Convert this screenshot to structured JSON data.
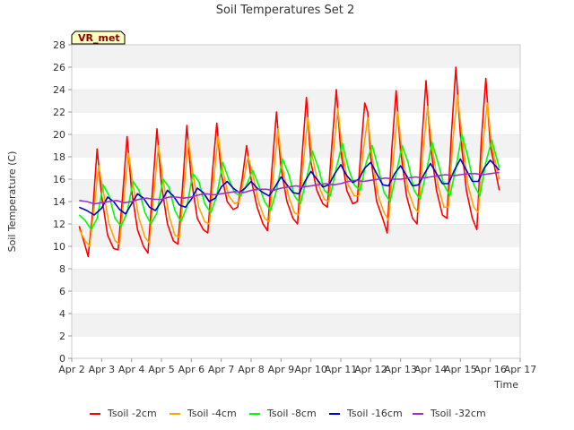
{
  "chart_data": {
    "type": "line",
    "title": "Soil Temperatures Set 2",
    "xlabel": "Time",
    "ylabel": "Soil Temperature (C)",
    "badge": "VR_met",
    "xlim": [
      2.0,
      17.0
    ],
    "ylim": [
      0,
      28
    ],
    "yticks": [
      "0",
      "2",
      "4",
      "6",
      "8",
      "10",
      "12",
      "14",
      "16",
      "18",
      "20",
      "22",
      "24",
      "26",
      "28"
    ],
    "xticks": [
      "Apr 2",
      "Apr 3",
      "Apr 4",
      "Apr 5",
      "Apr 6",
      "Apr 7",
      "Apr 8",
      "Apr 9",
      "Apr 10",
      "Apr 11",
      "Apr 12",
      "Apr 13",
      "Apr 14",
      "Apr 15",
      "Apr 16",
      "Apr 17"
    ],
    "grid": "horizontal bands",
    "legend_position": "bottom",
    "x_unit": "day of April",
    "series": [
      {
        "name": "Tsoil -2cm",
        "color": "#ff0000",
        "x": [
          2.25,
          2.4,
          2.55,
          2.7,
          2.85,
          3.0,
          3.2,
          3.4,
          3.55,
          3.7,
          3.85,
          4.0,
          4.2,
          4.4,
          4.55,
          4.7,
          4.85,
          5.0,
          5.2,
          5.4,
          5.55,
          5.7,
          5.85,
          6.0,
          6.2,
          6.4,
          6.55,
          6.7,
          6.85,
          7.0,
          7.2,
          7.4,
          7.55,
          7.7,
          7.85,
          8.0,
          8.2,
          8.4,
          8.55,
          8.7,
          8.85,
          9.0,
          9.2,
          9.4,
          9.55,
          9.7,
          9.85,
          10.0,
          10.2,
          10.4,
          10.55,
          10.7,
          10.85,
          11.0,
          11.2,
          11.4,
          11.55,
          11.7,
          11.8,
          11.9,
          12.0,
          12.2,
          12.4,
          12.55,
          12.7,
          12.85,
          13.0,
          13.2,
          13.4,
          13.55,
          13.7,
          13.85,
          14.0,
          14.2,
          14.4,
          14.55,
          14.7,
          14.85,
          15.0,
          15.2,
          15.4,
          15.55,
          15.7,
          15.85,
          16.0,
          16.15,
          16.3
        ],
        "y": [
          11.8,
          10.5,
          9.1,
          13.0,
          18.7,
          14.5,
          11.0,
          9.8,
          9.7,
          14.5,
          19.8,
          15.0,
          11.5,
          10.0,
          9.4,
          15.0,
          20.5,
          15.5,
          12.0,
          10.5,
          10.2,
          15.0,
          20.8,
          16.0,
          12.5,
          11.5,
          11.2,
          16.5,
          21.0,
          16.5,
          14.0,
          13.3,
          13.5,
          16.0,
          19.0,
          16.0,
          13.5,
          12.0,
          11.4,
          17.0,
          22.0,
          17.0,
          14.0,
          12.5,
          12.0,
          18.0,
          23.3,
          17.5,
          15.0,
          13.8,
          13.5,
          19.0,
          24.0,
          18.5,
          15.0,
          13.8,
          14.0,
          19.5,
          22.8,
          22.0,
          18.0,
          14.0,
          12.5,
          11.2,
          18.5,
          23.9,
          18.5,
          14.5,
          12.5,
          12.0,
          19.0,
          24.8,
          19.0,
          15.0,
          12.8,
          12.5,
          20.0,
          26.0,
          20.0,
          15.0,
          12.5,
          11.5,
          19.5,
          25.0,
          19.0,
          17.0,
          15.0
        ]
      },
      {
        "name": "Tsoil -4cm",
        "color": "#ffa500",
        "x": [
          2.25,
          2.45,
          2.6,
          2.75,
          2.9,
          3.05,
          3.25,
          3.45,
          3.6,
          3.75,
          3.9,
          4.05,
          4.25,
          4.45,
          4.6,
          4.75,
          4.9,
          5.05,
          5.25,
          5.45,
          5.6,
          5.75,
          5.9,
          6.05,
          6.25,
          6.45,
          6.6,
          6.75,
          6.9,
          7.05,
          7.25,
          7.45,
          7.6,
          7.75,
          7.9,
          8.05,
          8.25,
          8.45,
          8.6,
          8.75,
          8.9,
          9.05,
          9.25,
          9.45,
          9.6,
          9.75,
          9.9,
          10.05,
          10.25,
          10.45,
          10.6,
          10.75,
          10.9,
          11.05,
          11.25,
          11.45,
          11.6,
          11.75,
          11.9,
          12.05,
          12.25,
          12.45,
          12.6,
          12.75,
          12.9,
          13.05,
          13.25,
          13.45,
          13.6,
          13.75,
          13.9,
          14.05,
          14.25,
          14.45,
          14.6,
          14.75,
          14.9,
          15.05,
          15.25,
          15.45,
          15.6,
          15.75,
          15.9,
          16.05,
          16.3
        ],
        "y": [
          11.5,
          10.5,
          10.0,
          13.5,
          17.2,
          15.0,
          12.0,
          10.5,
          10.2,
          14.5,
          18.3,
          15.5,
          12.5,
          10.8,
          10.3,
          14.8,
          19.0,
          16.0,
          12.8,
          11.0,
          10.8,
          15.0,
          19.5,
          16.5,
          13.5,
          12.2,
          12.0,
          16.0,
          19.8,
          16.8,
          14.5,
          13.8,
          14.0,
          16.0,
          18.0,
          16.5,
          14.0,
          12.5,
          12.2,
          16.5,
          20.5,
          17.0,
          14.5,
          13.0,
          12.8,
          17.5,
          21.5,
          18.0,
          15.5,
          14.2,
          14.0,
          18.5,
          22.3,
          18.5,
          15.5,
          14.5,
          14.5,
          18.5,
          21.5,
          18.0,
          14.5,
          13.0,
          12.3,
          17.5,
          22.0,
          18.5,
          15.0,
          13.5,
          13.0,
          18.5,
          22.5,
          19.0,
          15.5,
          13.5,
          13.5,
          19.5,
          23.5,
          20.0,
          15.5,
          13.5,
          13.0,
          19.0,
          22.8,
          19.0,
          16.0
        ]
      },
      {
        "name": "Tsoil -8cm",
        "color": "#00ff00",
        "x": [
          2.25,
          2.45,
          2.65,
          2.85,
          3.05,
          3.25,
          3.45,
          3.65,
          3.85,
          4.05,
          4.25,
          4.45,
          4.65,
          4.85,
          5.05,
          5.25,
          5.45,
          5.65,
          5.85,
          6.05,
          6.25,
          6.45,
          6.65,
          6.85,
          7.05,
          7.25,
          7.45,
          7.65,
          7.85,
          8.05,
          8.25,
          8.45,
          8.65,
          8.85,
          9.05,
          9.25,
          9.45,
          9.65,
          9.85,
          10.05,
          10.25,
          10.45,
          10.65,
          10.85,
          11.05,
          11.25,
          11.45,
          11.65,
          11.85,
          12.05,
          12.25,
          12.45,
          12.65,
          12.85,
          13.05,
          13.25,
          13.45,
          13.65,
          13.85,
          14.05,
          14.25,
          14.45,
          14.65,
          14.85,
          15.05,
          15.25,
          15.45,
          15.65,
          15.85,
          16.05,
          16.3
        ],
        "y": [
          12.8,
          12.3,
          11.5,
          12.5,
          15.5,
          14.5,
          12.5,
          11.8,
          13.0,
          15.8,
          15.0,
          13.0,
          12.0,
          13.0,
          16.0,
          15.3,
          13.2,
          12.2,
          13.5,
          16.5,
          15.8,
          13.8,
          13.0,
          14.5,
          17.5,
          16.0,
          14.8,
          14.5,
          15.5,
          16.8,
          15.5,
          14.0,
          13.2,
          15.0,
          17.8,
          16.5,
          14.5,
          13.8,
          16.0,
          18.5,
          17.0,
          15.0,
          14.5,
          17.0,
          19.2,
          17.0,
          15.5,
          15.0,
          17.5,
          19.0,
          17.0,
          14.8,
          14.0,
          16.5,
          19.0,
          17.5,
          15.0,
          14.2,
          16.5,
          19.3,
          17.5,
          15.5,
          14.5,
          17.0,
          20.0,
          18.0,
          15.5,
          14.5,
          17.5,
          19.5,
          17.0
        ]
      },
      {
        "name": "Tsoil -16cm",
        "color": "#0000cc",
        "x": [
          2.25,
          2.5,
          2.75,
          3.0,
          3.2,
          3.4,
          3.6,
          3.8,
          4.0,
          4.2,
          4.4,
          4.6,
          4.8,
          5.0,
          5.2,
          5.4,
          5.6,
          5.8,
          6.0,
          6.2,
          6.4,
          6.6,
          6.8,
          7.0,
          7.2,
          7.4,
          7.6,
          7.8,
          8.0,
          8.2,
          8.4,
          8.6,
          8.8,
          9.0,
          9.2,
          9.4,
          9.6,
          9.8,
          10.0,
          10.2,
          10.4,
          10.6,
          10.8,
          11.0,
          11.2,
          11.4,
          11.6,
          11.8,
          12.0,
          12.2,
          12.4,
          12.6,
          12.8,
          13.0,
          13.2,
          13.4,
          13.6,
          13.8,
          14.0,
          14.2,
          14.4,
          14.6,
          14.8,
          15.0,
          15.2,
          15.4,
          15.6,
          15.8,
          16.0,
          16.3
        ],
        "y": [
          13.5,
          13.2,
          12.8,
          13.4,
          14.4,
          14.0,
          13.3,
          12.9,
          13.8,
          14.7,
          14.3,
          13.5,
          13.2,
          14.0,
          15.0,
          14.5,
          13.7,
          13.5,
          14.2,
          15.2,
          14.8,
          14.0,
          14.3,
          15.3,
          15.8,
          15.2,
          14.8,
          15.2,
          15.8,
          15.2,
          14.8,
          14.5,
          15.3,
          16.2,
          15.5,
          14.8,
          14.7,
          15.8,
          16.7,
          16.0,
          15.3,
          15.5,
          16.5,
          17.3,
          16.3,
          15.7,
          16.0,
          17.0,
          17.5,
          16.5,
          15.5,
          15.4,
          16.5,
          17.2,
          16.3,
          15.4,
          15.5,
          16.5,
          17.4,
          16.5,
          15.6,
          15.6,
          16.8,
          17.8,
          16.8,
          15.8,
          15.8,
          17.0,
          17.7,
          16.8
        ]
      },
      {
        "name": "Tsoil -32cm",
        "color": "#9932cc",
        "x": [
          2.25,
          2.5,
          2.75,
          3.0,
          3.25,
          3.5,
          3.75,
          4.0,
          4.25,
          4.5,
          4.75,
          5.0,
          5.25,
          5.5,
          5.75,
          6.0,
          6.25,
          6.5,
          6.75,
          7.0,
          7.25,
          7.5,
          7.75,
          8.0,
          8.25,
          8.5,
          8.75,
          9.0,
          9.25,
          9.5,
          9.75,
          10.0,
          10.25,
          10.5,
          10.75,
          11.0,
          11.25,
          11.5,
          11.75,
          12.0,
          12.25,
          12.5,
          12.75,
          13.0,
          13.25,
          13.5,
          13.75,
          14.0,
          14.25,
          14.5,
          14.75,
          15.0,
          15.25,
          15.5,
          15.75,
          16.0,
          16.3
        ],
        "y": [
          14.1,
          14.0,
          13.8,
          13.9,
          14.0,
          14.1,
          13.9,
          14.0,
          14.2,
          14.3,
          14.2,
          14.2,
          14.4,
          14.4,
          14.3,
          14.4,
          14.6,
          14.7,
          14.6,
          14.7,
          14.8,
          14.9,
          14.8,
          15.0,
          15.1,
          15.1,
          15.0,
          15.2,
          15.3,
          15.4,
          15.3,
          15.4,
          15.5,
          15.6,
          15.5,
          15.6,
          15.8,
          15.9,
          15.8,
          15.9,
          16.0,
          16.1,
          16.0,
          16.0,
          16.1,
          16.2,
          16.1,
          16.2,
          16.3,
          16.4,
          16.3,
          16.4,
          16.5,
          16.5,
          16.4,
          16.5,
          16.6
        ]
      }
    ]
  }
}
